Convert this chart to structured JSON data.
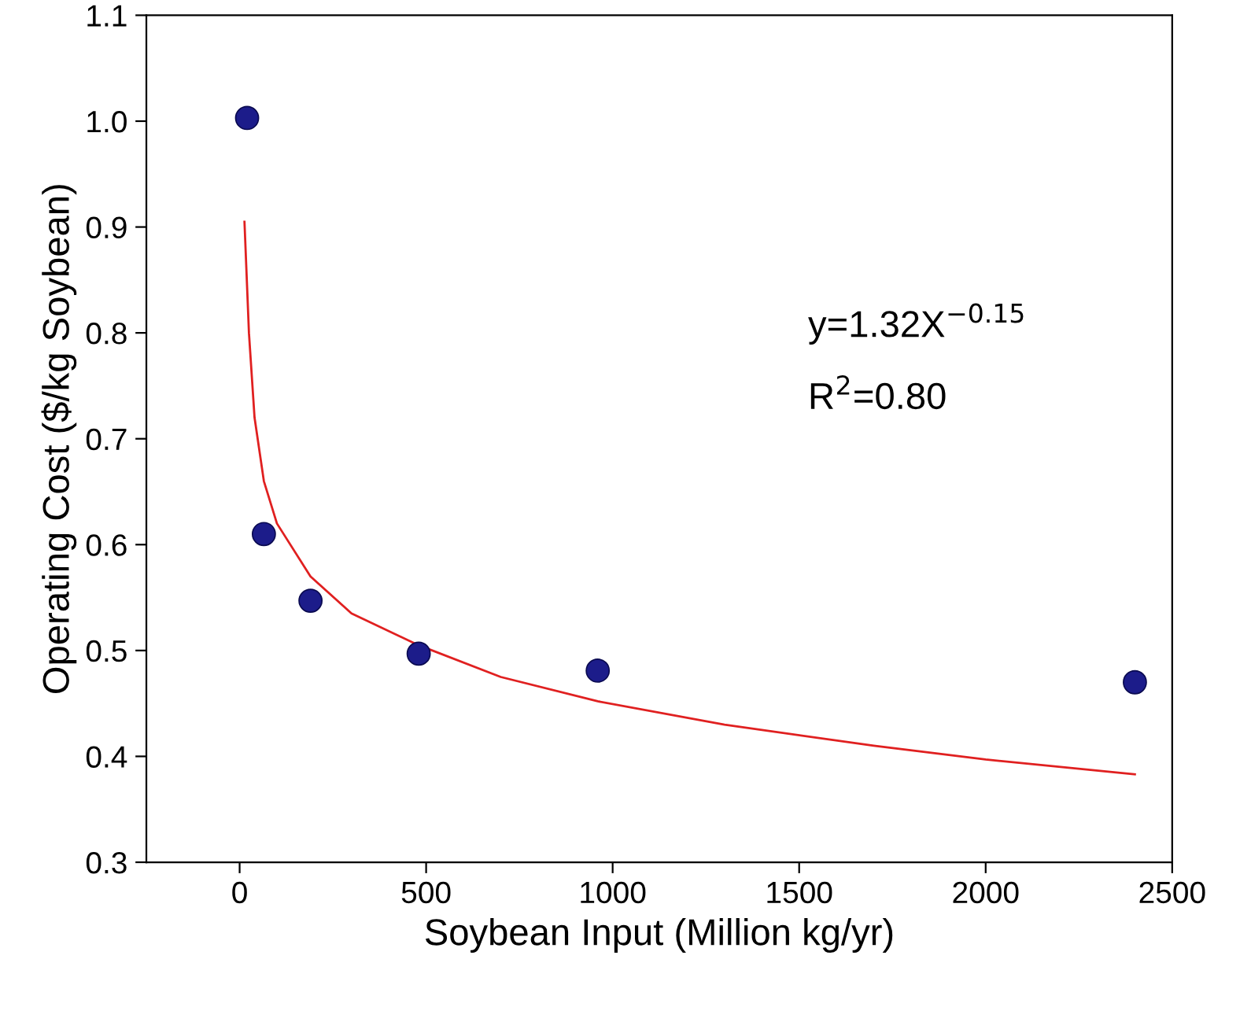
{
  "chart_data": {
    "type": "scatter",
    "xlabel": "Soybean Input (Million kg/yr)",
    "ylabel": "Operating Cost ($/kg Soybean)",
    "xlim": [
      -250,
      2500
    ],
    "xticks": [
      0,
      500,
      1000,
      1500,
      2000,
      2500
    ],
    "ylim": [
      0.3,
      1.1
    ],
    "yticks": [
      0.3,
      0.4,
      0.5,
      0.6,
      0.7,
      0.8,
      0.9,
      {
        "value": 1.0,
        "label": "1.0"
      },
      1.1
    ],
    "marker": "circle",
    "grid": false,
    "legend": false,
    "x": [
      20,
      65,
      190,
      480,
      960,
      2400
    ],
    "series": [
      {
        "color": "#1c1c8a",
        "values": [
          1.003,
          0.61,
          0.547,
          0.497,
          0.481,
          0.47
        ]
      },
      {
        "type": "line",
        "color": "#e02020",
        "marker": "none",
        "x": [
          13,
          25,
          40,
          65,
          100,
          190,
          300,
          480,
          700,
          960,
          1300,
          1700,
          2000,
          2400
        ],
        "values": [
          0.905,
          0.8,
          0.72,
          0.66,
          0.62,
          0.57,
          0.535,
          0.505,
          0.475,
          0.452,
          0.43,
          0.41,
          0.397,
          0.383
        ]
      }
    ],
    "annotations": [
      "y=1.32X$^{−0.15}$",
      "R$^{2}$=0.80"
    ]
  }
}
